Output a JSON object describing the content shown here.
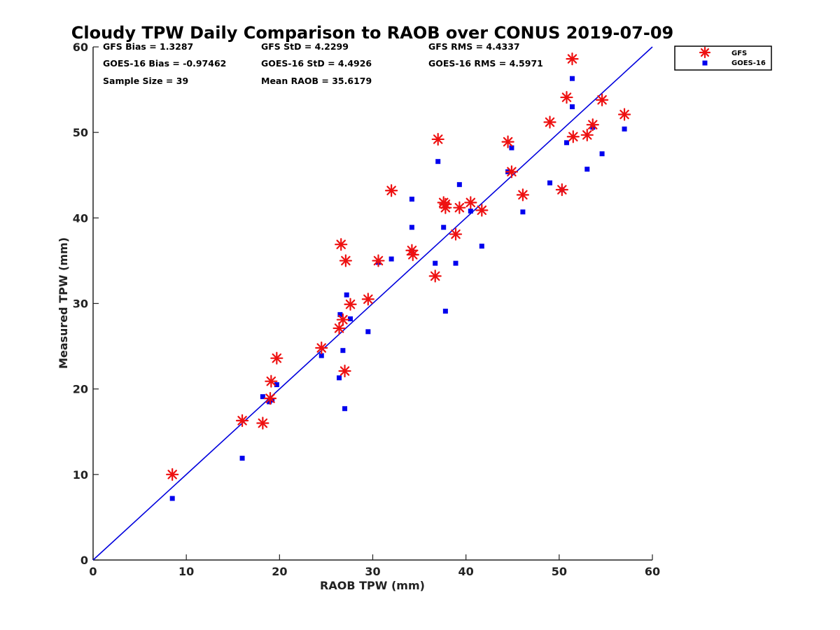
{
  "chart_data": {
    "type": "scatter",
    "title": "Cloudy TPW Daily Comparison to RAOB over CONUS 2019-07-09",
    "xlabel": "RAOB TPW (mm)",
    "ylabel": "Measured TPW (mm)",
    "xlim": [
      0,
      60
    ],
    "ylim": [
      0,
      60
    ],
    "xticks": [
      "0",
      "10",
      "20",
      "30",
      "40",
      "50",
      "60"
    ],
    "yticks": [
      "0",
      "10",
      "20",
      "30",
      "40",
      "50",
      "60"
    ],
    "grid": false,
    "legend_position": "outside-top-right",
    "stats": {
      "gfs_bias": "GFS Bias = 1.3287",
      "gfs_std": "GFS StD = 4.2299",
      "gfs_rms": "GFS RMS = 4.4337",
      "goes_bias": "GOES-16 Bias = -0.97462",
      "goes_std": "GOES-16 StD = 4.4926",
      "goes_rms": "GOES-16 RMS = 4.5971",
      "sample_size": "Sample Size = 39",
      "mean_raob": "Mean RAOB = 35.6179"
    },
    "reference_line": {
      "x": [
        0,
        60
      ],
      "y": [
        0,
        60
      ],
      "color": "#0000dd"
    },
    "series": [
      {
        "name": "GFS",
        "marker": "asterisk",
        "color": "#ee1111",
        "points": [
          [
            8.5,
            10.0
          ],
          [
            16.0,
            16.3
          ],
          [
            18.2,
            16.0
          ],
          [
            19.0,
            18.9
          ],
          [
            19.1,
            20.9
          ],
          [
            19.7,
            23.6
          ],
          [
            24.5,
            24.8
          ],
          [
            26.4,
            27.1
          ],
          [
            26.8,
            28.1
          ],
          [
            27.0,
            22.1
          ],
          [
            27.6,
            29.9
          ],
          [
            26.6,
            36.9
          ],
          [
            27.1,
            35.0
          ],
          [
            29.5,
            30.5
          ],
          [
            30.6,
            35.0
          ],
          [
            32.0,
            43.2
          ],
          [
            34.2,
            36.2
          ],
          [
            34.3,
            35.7
          ],
          [
            36.7,
            33.2
          ],
          [
            37.0,
            49.2
          ],
          [
            37.6,
            41.8
          ],
          [
            37.8,
            41.2
          ],
          [
            38.9,
            38.1
          ],
          [
            39.3,
            41.2
          ],
          [
            40.5,
            41.8
          ],
          [
            41.7,
            40.9
          ],
          [
            44.5,
            48.9
          ],
          [
            44.9,
            45.4
          ],
          [
            46.1,
            42.7
          ],
          [
            49.0,
            51.2
          ],
          [
            50.3,
            43.3
          ],
          [
            50.8,
            54.1
          ],
          [
            51.4,
            58.6
          ],
          [
            51.5,
            49.5
          ],
          [
            53.0,
            49.7
          ],
          [
            53.6,
            50.9
          ],
          [
            54.6,
            53.8
          ],
          [
            57.0,
            52.1
          ],
          [
            37.8,
            41.6
          ]
        ]
      },
      {
        "name": "GOES-16",
        "marker": "square",
        "color": "#0000ee",
        "points": [
          [
            8.5,
            7.2
          ],
          [
            16.0,
            11.9
          ],
          [
            18.2,
            19.1
          ],
          [
            18.9,
            18.5
          ],
          [
            19.2,
            18.7
          ],
          [
            19.7,
            20.5
          ],
          [
            24.5,
            23.9
          ],
          [
            26.4,
            21.3
          ],
          [
            26.5,
            28.7
          ],
          [
            26.8,
            24.5
          ],
          [
            27.0,
            17.7
          ],
          [
            27.2,
            31.0
          ],
          [
            27.6,
            28.2
          ],
          [
            29.5,
            26.7
          ],
          [
            30.6,
            34.8
          ],
          [
            32.0,
            35.2
          ],
          [
            34.2,
            42.2
          ],
          [
            34.2,
            38.9
          ],
          [
            36.7,
            34.7
          ],
          [
            37.0,
            46.6
          ],
          [
            37.6,
            38.9
          ],
          [
            37.8,
            29.1
          ],
          [
            38.9,
            34.7
          ],
          [
            39.3,
            43.9
          ],
          [
            40.5,
            40.8
          ],
          [
            41.7,
            36.7
          ],
          [
            44.5,
            45.4
          ],
          [
            44.9,
            48.2
          ],
          [
            46.1,
            40.7
          ],
          [
            49.0,
            44.1
          ],
          [
            50.3,
            43.3
          ],
          [
            50.8,
            48.8
          ],
          [
            51.4,
            56.3
          ],
          [
            51.4,
            53.0
          ],
          [
            53.0,
            45.7
          ],
          [
            53.6,
            50.6
          ],
          [
            54.6,
            47.5
          ],
          [
            57.0,
            50.4
          ],
          [
            34.2,
            36.1
          ]
        ]
      }
    ]
  }
}
